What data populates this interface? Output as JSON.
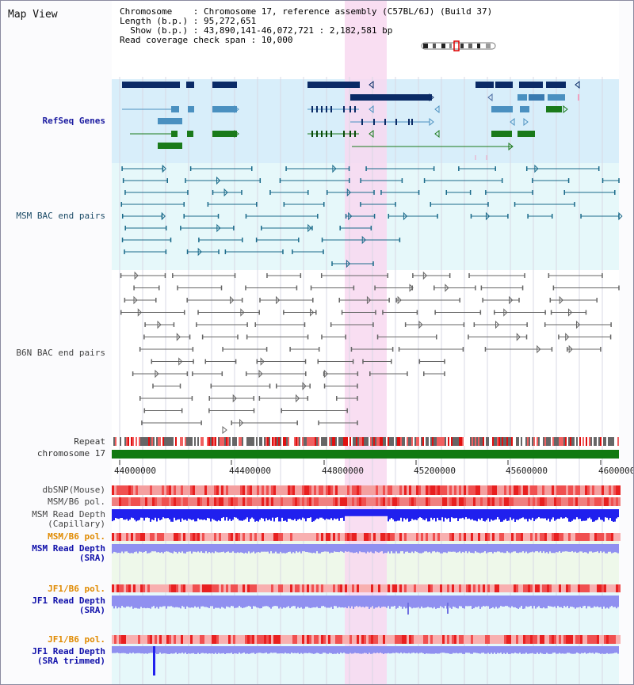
{
  "header": {
    "title": "Map View",
    "info_lines": [
      "Chromosome    : Chromosome 17, reference assembly (C57BL/6J) (Build 37)",
      "Length (b.p.) : 95,272,651",
      "  Show (b.p.) : 43,890,141-46,072,721 : 2,182,581 bp",
      "Read coverage check span : 10,000"
    ]
  },
  "tracks": {
    "refseq": "RefSeq Genes",
    "msm_bac": "MSM BAC end pairs",
    "b6n_bac": "B6N BAC end pairs",
    "repeat": "Repeat",
    "chromosome": "chromosome 17",
    "dbsnp": "dbSNP(Mouse)",
    "msm_b6_pol": "MSM/B6 pol.",
    "msm_depth_cap_1": "MSM Read Depth",
    "msm_depth_cap_2": "(Capillary)",
    "msm_b6_pol_2": "MSM/B6 pol.",
    "msm_depth_sra_1": "MSM Read Depth",
    "msm_depth_sra_2": "(SRA)",
    "jf1_b6_pol": "JF1/B6 pol.",
    "jf1_depth_sra_1": "JF1 Read Depth",
    "jf1_depth_sra_2": "(SRA)",
    "jf1_b6_pol_2": "JF1/B6 pol.",
    "jf1_depth_trim_1": "JF1 Read Depth",
    "jf1_depth_trim_2": "(SRA trimmed)"
  },
  "axis": {
    "ticks": [
      "44000000",
      "44400000",
      "44800000",
      "45200000",
      "45600000",
      "46000000"
    ]
  },
  "colors": {
    "highlight": "#f8d8f0",
    "refseq_bg": "#d8eefa",
    "msm_bg": "#e6f8fa",
    "gene_navy": "#0a2a66",
    "gene_blue": "#4a90c0",
    "gene_green": "#1a7a1a",
    "bac_teal": "#1a6a8a",
    "bac_gray": "#666666",
    "chromosome_green": "#117a11",
    "depth_blue": "#2020ee",
    "depth_light": "#9090f0",
    "pol_red": "#f08080"
  }
}
